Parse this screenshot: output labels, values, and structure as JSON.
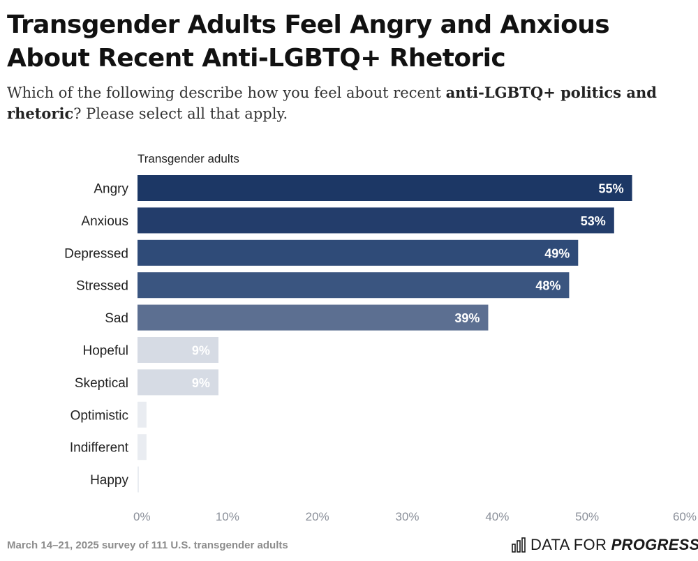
{
  "title": "Transgender Adults Feel Angry and Anxious About Recent Anti-LGBTQ+ Rhetoric",
  "subtitle": {
    "before": "Which of the following describe how you feel about recent ",
    "bold": "anti-LGBTQ+ politics and rhetoric",
    "after": "? Please select all that apply."
  },
  "footer": {
    "note": "March 14–21, 2025 survey of 111 U.S. transgender adults",
    "brand_regular": "DATA FOR ",
    "brand_bold": "PROGRESS",
    "logo_icon": "bar-chart-icon"
  },
  "chart_data": {
    "type": "bar",
    "orientation": "horizontal",
    "series_label": "Transgender adults",
    "categories": [
      "Angry",
      "Anxious",
      "Depressed",
      "Stressed",
      "Sad",
      "Hopeful",
      "Skeptical",
      "Optimistic",
      "Indifferent",
      "Happy"
    ],
    "values": [
      55,
      53,
      49,
      48,
      39,
      9,
      9,
      1,
      1,
      0
    ],
    "value_labels": [
      "55%",
      "53%",
      "49%",
      "48%",
      "39%",
      "9%",
      "9%",
      "",
      "",
      ""
    ],
    "colors": [
      "#1c3765",
      "#233d6b",
      "#2f4b78",
      "#3a5580",
      "#5c6f91",
      "#d6dbe4",
      "#d6dbe4",
      "#e9ecf1",
      "#e9ecf1",
      "#e9ecf1"
    ],
    "xlim": [
      0,
      60
    ],
    "xticks": [
      0,
      10,
      20,
      30,
      40,
      50,
      60
    ],
    "xtick_labels": [
      "0%",
      "10%",
      "20%",
      "30%",
      "40%",
      "50%",
      "60%"
    ],
    "grid": false,
    "legend": "none"
  }
}
